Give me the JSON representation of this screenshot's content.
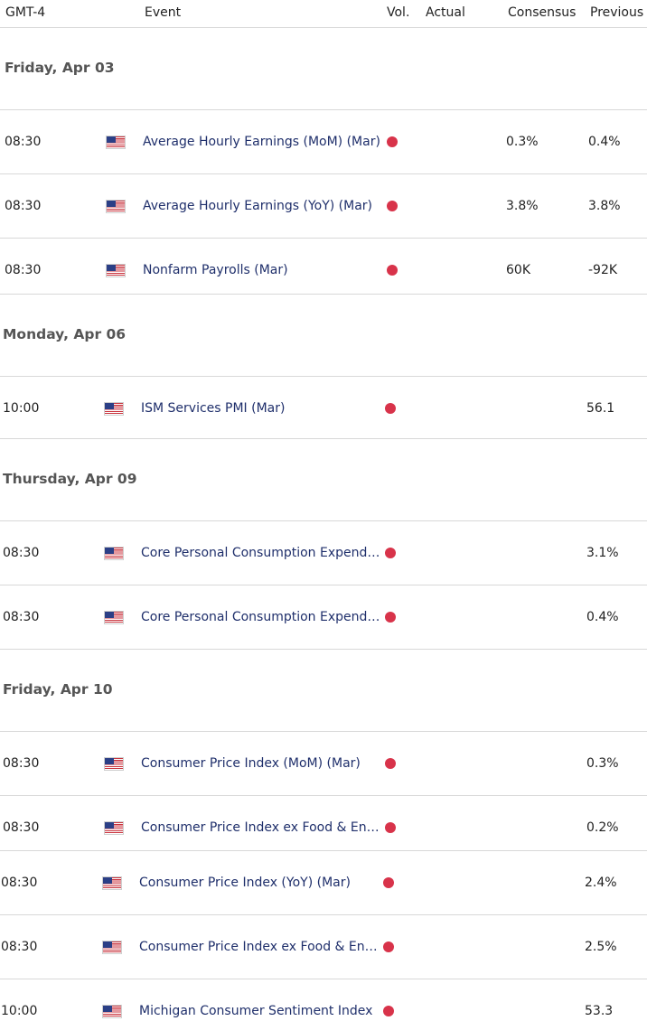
{
  "header": {
    "timezone": "GMT-4",
    "event": "Event",
    "vol": "Vol.",
    "actual": "Actual",
    "consensus": "Consensus",
    "previous": "Previous"
  },
  "colors": {
    "volatility_dot": "#d8334a",
    "event_text": "#1f2f6b",
    "day_text": "#555555"
  },
  "flag_icon": "us-flag-icon",
  "days": [
    {
      "label": "Friday, Apr 03",
      "events": [
        {
          "time": "08:30",
          "country": "US",
          "event": "Average Hourly Earnings (MoM) (Mar)",
          "actual": "",
          "consensus": "0.3%",
          "previous": "0.4%"
        },
        {
          "time": "08:30",
          "country": "US",
          "event": "Average Hourly Earnings (YoY) (Mar)",
          "actual": "",
          "consensus": "3.8%",
          "previous": "3.8%"
        },
        {
          "time": "08:30",
          "country": "US",
          "event": "Nonfarm Payrolls (Mar)",
          "actual": "",
          "consensus": "60K",
          "previous": "-92K"
        }
      ]
    },
    {
      "label": "Monday, Apr 06",
      "events": [
        {
          "time": "10:00",
          "country": "US",
          "event": "ISM Services PMI (Mar)",
          "actual": "",
          "consensus": "",
          "previous": "56.1"
        }
      ]
    },
    {
      "label": "Thursday, Apr 09",
      "events": [
        {
          "time": "08:30",
          "country": "US",
          "event": "Core Personal Consumption Expenditures",
          "actual": "",
          "consensus": "",
          "previous": "3.1%"
        },
        {
          "time": "08:30",
          "country": "US",
          "event": "Core Personal Consumption Expenditures",
          "actual": "",
          "consensus": "",
          "previous": "0.4%"
        }
      ]
    },
    {
      "label": "Friday, Apr 10",
      "events": [
        {
          "time": "08:30",
          "country": "US",
          "event": "Consumer Price Index (MoM) (Mar)",
          "actual": "",
          "consensus": "",
          "previous": "0.3%"
        },
        {
          "time": "08:30",
          "country": "US",
          "event": "Consumer Price Index ex Food & Energy",
          "actual": "",
          "consensus": "",
          "previous": "0.2%"
        },
        {
          "time": "08:30",
          "country": "US",
          "event": "Consumer Price Index (YoY) (Mar)",
          "actual": "",
          "consensus": "",
          "previous": "2.4%"
        },
        {
          "time": "08:30",
          "country": "US",
          "event": "Consumer Price Index ex Food & Energy",
          "actual": "",
          "consensus": "",
          "previous": "2.5%"
        },
        {
          "time": "10:00",
          "country": "US",
          "event": "Michigan Consumer Sentiment Index",
          "actual": "",
          "consensus": "",
          "previous": "53.3"
        }
      ]
    }
  ]
}
